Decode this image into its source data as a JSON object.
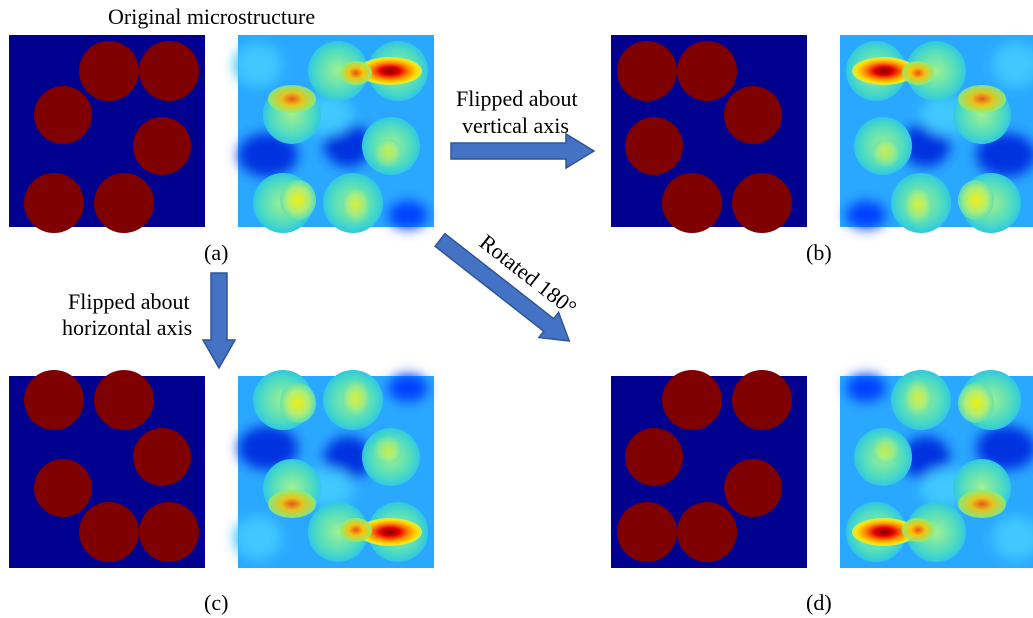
{
  "figure": {
    "title": "Original microstructure",
    "panels": [
      {
        "id": "a",
        "label": "(a)"
      },
      {
        "id": "b",
        "label": "(b)"
      },
      {
        "id": "c",
        "label": "(c)"
      },
      {
        "id": "d",
        "label": "(d)"
      }
    ],
    "arrows": {
      "vertical_flip": {
        "line1": "Flipped about",
        "line2": "vertical axis"
      },
      "horizontal_flip": {
        "line1": "Flipped about",
        "line2": "horizontal axis"
      },
      "rotation": {
        "label": "Rotated 180°"
      }
    }
  },
  "colors": {
    "matrix": "#00008f",
    "inclusion": "#7f0000",
    "arrow_fill": "#4472c4",
    "arrow_stroke": "#2f5597"
  }
}
